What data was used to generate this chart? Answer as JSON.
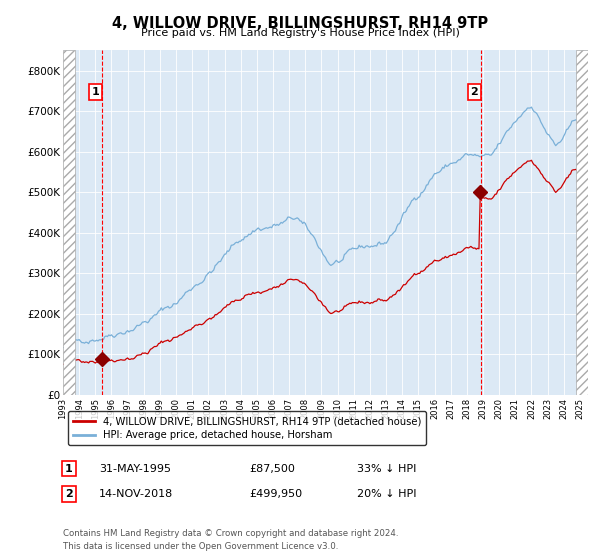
{
  "title": "4, WILLOW DRIVE, BILLINGSHURST, RH14 9TP",
  "subtitle": "Price paid vs. HM Land Registry's House Price Index (HPI)",
  "background_color": "#dce9f5",
  "hpi_color": "#7ab0d8",
  "price_color": "#cc0000",
  "marker_color": "#8b0000",
  "sale1_date_num": 1995.42,
  "sale1_price": 87500,
  "sale2_date_num": 2018.87,
  "sale2_price": 499950,
  "sale1_label": "31-MAY-1995",
  "sale1_price_label": "£87,500",
  "sale1_hpi_label": "33% ↓ HPI",
  "sale2_label": "14-NOV-2018",
  "sale2_price_label": "£499,950",
  "sale2_hpi_label": "20% ↓ HPI",
  "legend_label_price": "4, WILLOW DRIVE, BILLINGSHURST, RH14 9TP (detached house)",
  "legend_label_hpi": "HPI: Average price, detached house, Horsham",
  "footer1": "Contains HM Land Registry data © Crown copyright and database right 2024.",
  "footer2": "This data is licensed under the Open Government Licence v3.0.",
  "ylim": [
    0,
    850000
  ],
  "xlim_start": 1993.0,
  "xlim_end": 2025.5,
  "hatch_left_end": 1993.75,
  "hatch_right_start": 2024.75,
  "yticks": [
    0,
    100000,
    200000,
    300000,
    400000,
    500000,
    600000,
    700000,
    800000
  ],
  "ytick_labels": [
    "£0",
    "£100K",
    "£200K",
    "£300K",
    "£400K",
    "£500K",
    "£600K",
    "£700K",
    "£800K"
  ]
}
